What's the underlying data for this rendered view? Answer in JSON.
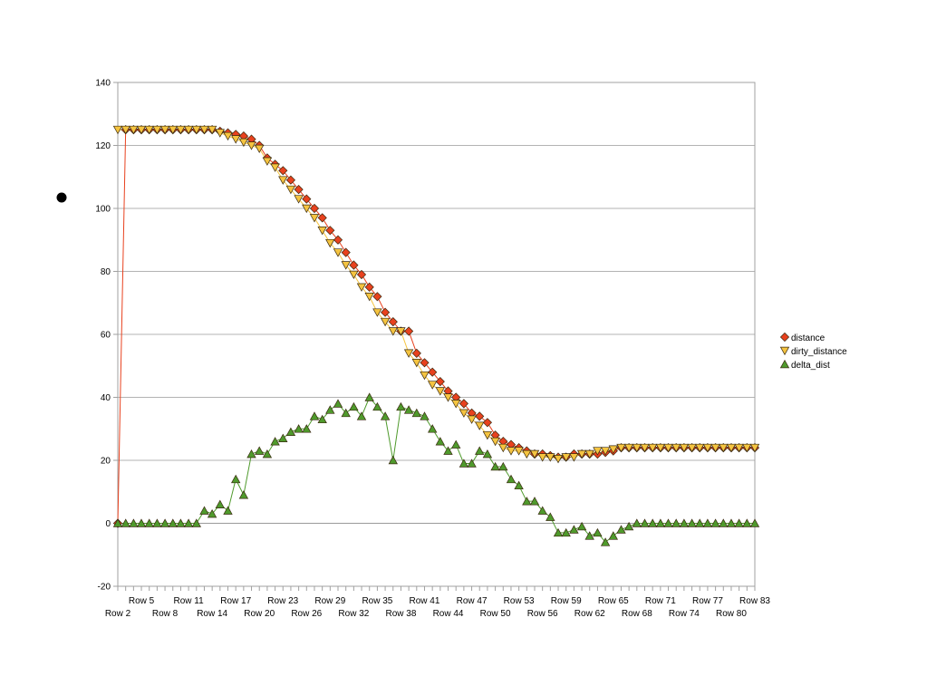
{
  "chart_data": {
    "type": "line",
    "title": "",
    "xlabel": "",
    "ylabel": "",
    "ylim": [
      -20,
      140
    ],
    "yticks": [
      -20,
      0,
      20,
      40,
      60,
      80,
      100,
      120,
      140
    ],
    "grid": true,
    "legend_position": "right",
    "x_labels_upper": [
      "Row 5",
      "Row 11",
      "Row 17",
      "Row 23",
      "Row 29",
      "Row 35",
      "Row 41",
      "Row 47",
      "Row 53",
      "Row 59",
      "Row 65",
      "Row 71",
      "Row 77",
      "Row 83"
    ],
    "x_labels_lower": [
      "Row 2",
      "Row 8",
      "Row 14",
      "Row 20",
      "Row 26",
      "Row 32",
      "Row 38",
      "Row 44",
      "Row 50",
      "Row 56",
      "Row 62",
      "Row 68",
      "Row 74",
      "Row 80"
    ],
    "categories_first_row": 2,
    "categories_last_row": 83,
    "series": [
      {
        "name": "distance",
        "color": "#e8411e",
        "marker": "diamond",
        "values": [
          0,
          125,
          125,
          125,
          125,
          125,
          125,
          125,
          125,
          125,
          125,
          125,
          125,
          124.5,
          124,
          123.5,
          123,
          122,
          120,
          116,
          114,
          112,
          109,
          106,
          103,
          100,
          97,
          93,
          90,
          86,
          82,
          79,
          75,
          72,
          67,
          64,
          61,
          61,
          54,
          51,
          48,
          45,
          42,
          40,
          38,
          35,
          34,
          32,
          28,
          26,
          25,
          24,
          23,
          22,
          22,
          21.5,
          21,
          21,
          22,
          22,
          22,
          22,
          22.5,
          23,
          24,
          24,
          24,
          24,
          24,
          24,
          24,
          24,
          24,
          24,
          24,
          24,
          24,
          24,
          24,
          24,
          24,
          24
        ],
        "legend_label": "distance"
      },
      {
        "name": "dirty_distance",
        "color": "#f5c440",
        "marker": "triangle-down",
        "values": [
          125,
          125,
          125,
          125,
          125,
          125,
          125,
          125,
          125,
          125,
          125,
          125,
          125,
          124,
          123,
          122,
          121,
          120,
          119,
          115,
          113,
          109,
          106,
          103,
          100,
          97,
          93,
          89,
          86,
          82,
          79,
          75,
          72,
          67,
          64,
          61,
          61,
          54,
          51,
          47,
          44,
          42,
          40,
          38,
          35,
          33,
          31,
          28,
          26,
          24,
          23,
          23,
          22,
          22,
          21,
          21,
          20.5,
          21,
          21,
          22,
          22,
          23,
          23,
          23.5,
          24,
          24,
          24,
          24,
          24,
          24,
          24,
          24,
          24,
          24,
          24,
          24,
          24,
          24,
          24,
          24,
          24,
          24
        ],
        "legend_label": "dirty_distance"
      },
      {
        "name": "delta_dist",
        "color": "#4f9a2c",
        "marker": "triangle-up",
        "values": [
          0,
          0,
          0,
          0,
          0,
          0,
          0,
          0,
          0,
          0,
          0,
          4,
          3,
          6,
          4,
          14,
          9,
          22,
          23,
          22,
          26,
          27,
          29,
          30,
          30,
          34,
          33,
          36,
          38,
          35,
          37,
          34,
          40,
          37,
          34,
          20,
          37,
          36,
          35,
          34,
          30,
          26,
          23,
          25,
          19,
          19,
          23,
          22,
          18,
          18,
          14,
          12,
          7,
          7,
          4,
          2,
          -3,
          -3,
          -2,
          -1,
          -4,
          -3,
          -6,
          -4,
          -2,
          -1,
          0,
          0,
          0,
          0,
          0,
          0,
          0,
          0,
          0,
          0,
          0,
          0,
          0,
          0,
          0,
          0
        ],
        "legend_label": "delta_dist"
      }
    ]
  }
}
